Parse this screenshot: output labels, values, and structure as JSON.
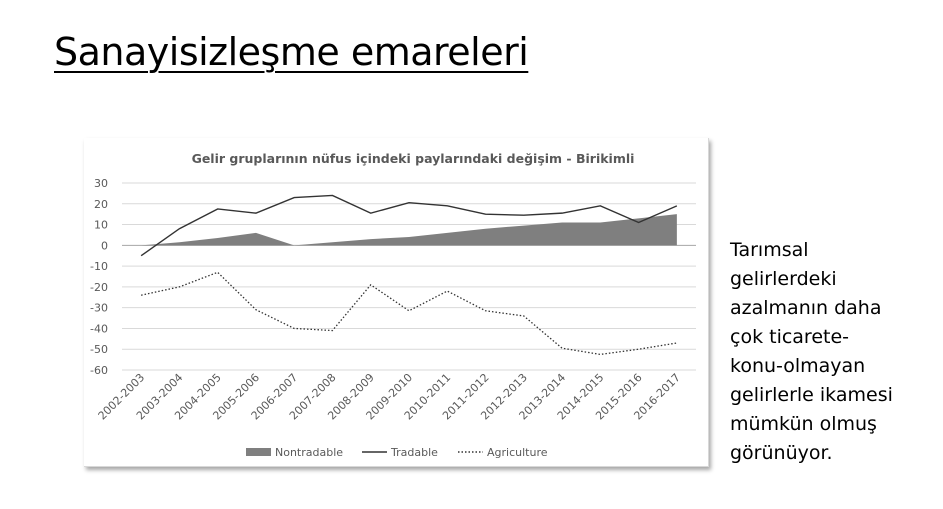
{
  "slide": {
    "title": "Sanayisizleşme emareleri",
    "side_text": [
      "Tarımsal",
      "gelirlerdeki",
      "azalmanın daha",
      "çok ticarete-",
      "konu-olmayan",
      "gelirlerle ikamesi",
      "mümkün olmuş",
      "görünüyor."
    ]
  },
  "chart_data": {
    "type": "line",
    "title": "Gelir gruplarının nüfus içindeki paylarındaki değişim - Birikimli",
    "xlabel": "",
    "ylabel": "",
    "ylim": [
      -60,
      30
    ],
    "yticks": [
      30,
      20,
      10,
      0,
      -10,
      -20,
      -30,
      -40,
      -50,
      -60
    ],
    "grid": true,
    "legend_position": "bottom",
    "categories": [
      "2002-2003",
      "2003-2004",
      "2004-2005",
      "2005-2006",
      "2006-2007",
      "2007-2008",
      "2008-2009",
      "2009-2010",
      "2010-2011",
      "2011-2012",
      "2012-2013",
      "2013-2014",
      "2014-2015",
      "2015-2016",
      "2016-2017"
    ],
    "series": [
      {
        "name": "Nontradable",
        "style": "area",
        "color": "#7f7f7f",
        "values": [
          0,
          1.5,
          3.5,
          6,
          0,
          1.5,
          3,
          4,
          6,
          8,
          9.5,
          11,
          11,
          13,
          15
        ]
      },
      {
        "name": "Tradable",
        "style": "solid",
        "color": "#333333",
        "values": [
          -5,
          8,
          17.5,
          15.5,
          23,
          24,
          15.5,
          20.5,
          19,
          15,
          14.5,
          15.5,
          19,
          11,
          19
        ]
      },
      {
        "name": "Agriculture",
        "style": "dotted",
        "color": "#333333",
        "values": [
          -24,
          -20,
          -13,
          -31,
          -40,
          -41,
          -19,
          -31.5,
          -22,
          -31.5,
          -34,
          -49.5,
          -52.5,
          -50,
          -47
        ]
      }
    ]
  }
}
